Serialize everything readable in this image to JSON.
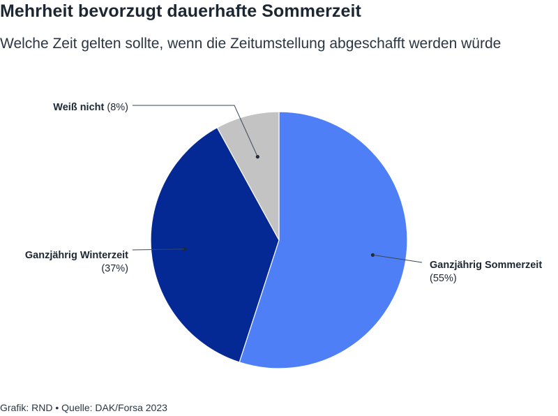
{
  "title": "Mehrheit bevorzugt dauerhafte Sommerzeit",
  "subtitle": "Welche Zeit gelten sollte, wenn die Zeitumstellung abgeschafft werden würde",
  "footer": {
    "credit": "Grafik: RND",
    "separator": "•",
    "source": "Quelle: DAK/Forsa 2023"
  },
  "chart_data": {
    "type": "pie",
    "title": "Mehrheit bevorzugt dauerhafte Sommerzeit",
    "subtitle": "Welche Zeit gelten sollte, wenn die Zeitumstellung abgeschafft werden würde",
    "slices": [
      {
        "label": "Ganzjährig Sommerzeit",
        "value": 55,
        "display": "(55%)",
        "color": "#4f7ff7"
      },
      {
        "label": "Ganzjährig Winterzeit",
        "value": 37,
        "display": "(37%)",
        "color": "#042994"
      },
      {
        "label": "Weiß nicht",
        "value": 8,
        "display": "(8%)",
        "color": "#c3c3c3"
      }
    ]
  }
}
